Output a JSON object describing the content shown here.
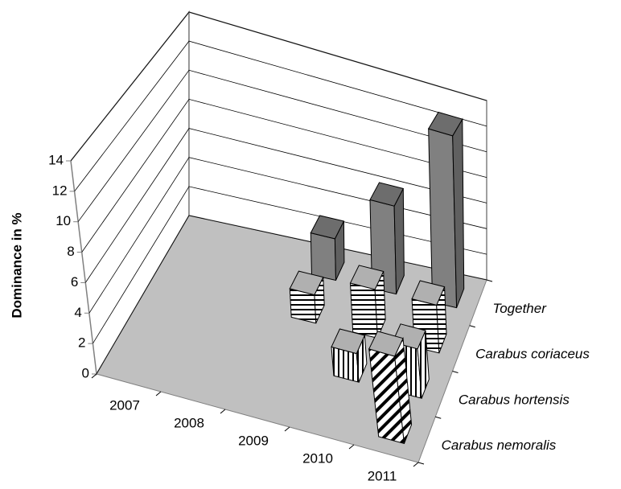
{
  "chart_data": {
    "type": "bar3d",
    "y_label": "Dominance in %",
    "categories": [
      "2007",
      "2008",
      "2009",
      "2010",
      "2011"
    ],
    "series": [
      {
        "name": "Carabus nemoralis",
        "color": "#ffffff",
        "pattern": "diagonal",
        "values": [
          null,
          null,
          null,
          null,
          6
        ]
      },
      {
        "name": "Carabus hortensis",
        "color": "#ffffff",
        "pattern": "vertical",
        "values": [
          null,
          null,
          null,
          2,
          3.5
        ]
      },
      {
        "name": "Carabus coriaceus",
        "color": "#ffffff",
        "pattern": "horizontal",
        "values": [
          null,
          null,
          2,
          3.5,
          3.5
        ]
      },
      {
        "name": "Together",
        "color": "#808080",
        "values": [
          null,
          null,
          3,
          6.5,
          13
        ]
      }
    ],
    "ylim": [
      0,
      14
    ],
    "yticks": [
      0,
      2,
      4,
      6,
      8,
      10,
      12,
      14
    ],
    "grid": true
  }
}
